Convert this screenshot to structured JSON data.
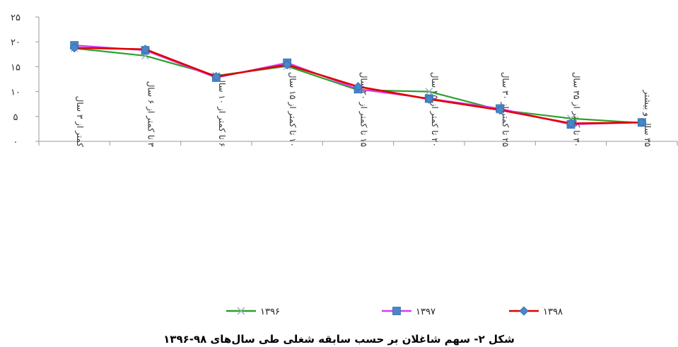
{
  "chart_data": {
    "type": "line",
    "title": "",
    "xlabel": "",
    "ylabel": "",
    "categories": [
      "کمتر از ۳ سال",
      "۳ تا کمتر از ۶ سال",
      "۶ تا کمتر از ۱۰ سال",
      "۱۰ تا کمتر از ۱۵ سال",
      "۱۵ تا کمتر از ۲۰ سال",
      "۲۰ تا کمتر از ۲۵ سال",
      "۲۵ تا کمتر از ۳۰ سال",
      "۳۰ تا کمتر از ۳۵ سال",
      "۳۵ سال و بیشتر"
    ],
    "ylim": [
      0,
      25
    ],
    "yticks": [
      0,
      5,
      10,
      15,
      20,
      25
    ],
    "ytick_labels": [
      "۰",
      "۵",
      "۱۰",
      "۱۵",
      "۲۰",
      "۲۵"
    ],
    "grid": false,
    "legend_position": "bottom",
    "series": [
      {
        "name": "۱۳۹۶",
        "color": "#2ca02c",
        "marker": "x-icon",
        "values": [
          18.7,
          17.2,
          13.2,
          15.1,
          10.3,
          10.0,
          6.3,
          4.6,
          3.7
        ]
      },
      {
        "name": "۱۳۹۷",
        "color": "#d63cf2",
        "marker": "square-icon",
        "values": [
          19.3,
          18.3,
          12.8,
          15.8,
          10.5,
          8.6,
          6.6,
          3.4,
          3.8
        ]
      },
      {
        "name": "۱۳۹۸",
        "color": "#e00000",
        "marker": "diamond-icon",
        "values": [
          18.8,
          18.5,
          13.0,
          15.4,
          11.0,
          8.5,
          6.3,
          3.6,
          3.8
        ]
      }
    ],
    "marker_fill": "#4a86c8"
  },
  "caption": "شکل ۲- سهم شاغلان بر حسب سابقه شغلی طی سال‌های ۹۸-۱۳۹۶"
}
